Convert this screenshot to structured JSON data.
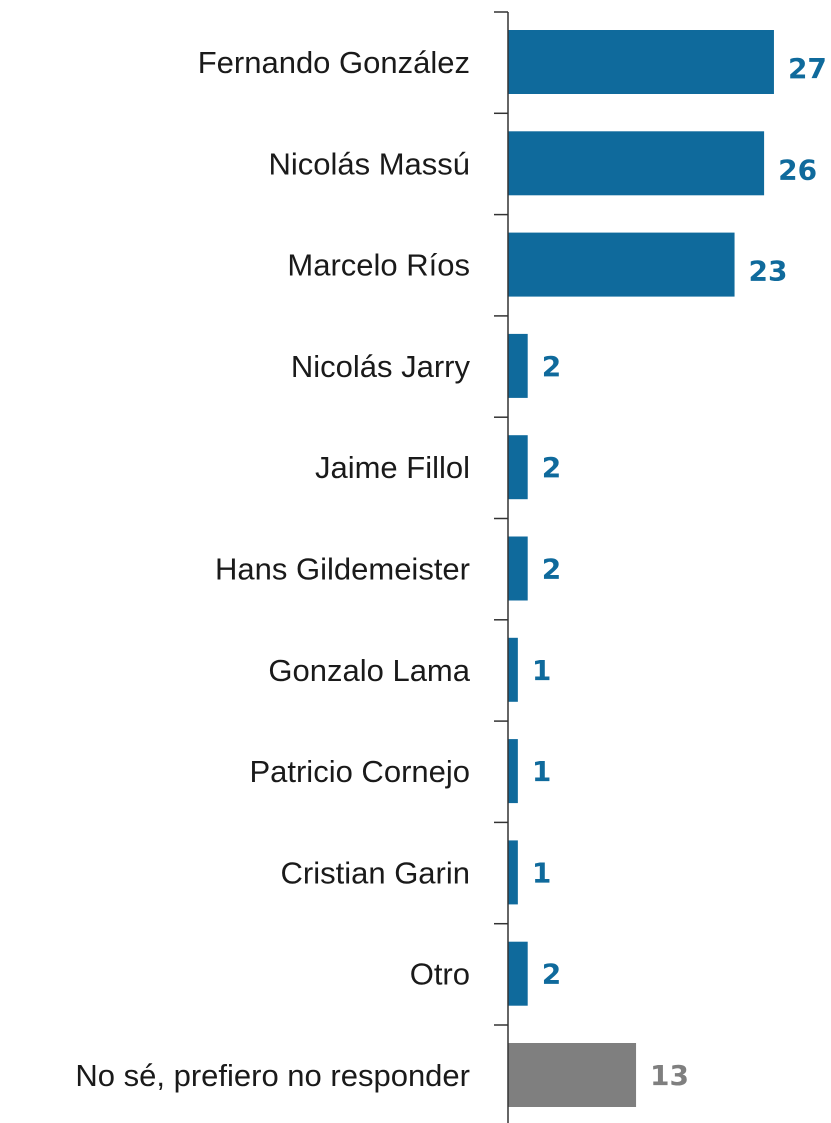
{
  "chart_data": {
    "type": "bar",
    "orientation": "horizontal",
    "categories": [
      "Fernando González",
      "Nicolás Massú",
      "Marcelo Ríos",
      "Nicolás Jarry",
      "Jaime Fillol",
      "Hans Gildemeister",
      "Gonzalo Lama",
      "Patricio Cornejo",
      "Cristian Garin",
      "Otro",
      "No sé, prefiero no responder"
    ],
    "values": [
      27,
      26,
      23,
      2,
      2,
      2,
      1,
      1,
      1,
      2,
      13
    ],
    "value_labels": [
      "27",
      "26",
      "23",
      "2",
      "2",
      "2",
      "1",
      "1",
      "1",
      "2",
      "13"
    ],
    "colors": {
      "primary": "#0f6a9c",
      "no_answer": "#7f7f7f"
    },
    "bar_colors": [
      "primary",
      "primary",
      "primary",
      "primary",
      "primary",
      "primary",
      "primary",
      "primary",
      "primary",
      "primary",
      "no_answer"
    ],
    "xlim": [
      0,
      30
    ],
    "title": "",
    "xlabel": "",
    "ylabel": "",
    "grid": false,
    "legend": "none"
  }
}
